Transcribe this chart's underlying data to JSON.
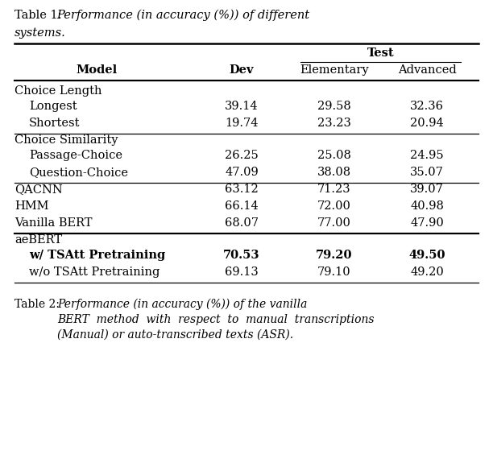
{
  "title_normal": "Table 1: ",
  "title_italic_line1": "Performance (in accuracy (%)) of different",
  "title_italic_line2": "systems.",
  "caption_normal": "Table 2: ",
  "caption_italic": "Performance (in accuracy (%)) of the vanilla\nBERT  method  with  respect  to  manual  transcriptions\n(Manual) or auto-transcribed texts (ASR).",
  "test_label": "Test",
  "col_model_label": "Model",
  "col_dev_label": "Dev",
  "col_elem_label": "Elementary",
  "col_adv_label": "Advanced",
  "rows": [
    {
      "label": "Choice Length",
      "indent": 0,
      "dev": "",
      "elem": "",
      "adv": "",
      "group_header": true,
      "bold": false
    },
    {
      "label": "Longest",
      "indent": 1,
      "dev": "39.14",
      "elem": "29.58",
      "adv": "32.36",
      "group_header": false,
      "bold": false
    },
    {
      "label": "Shortest",
      "indent": 1,
      "dev": "19.74",
      "elem": "23.23",
      "adv": "20.94",
      "group_header": false,
      "bold": false
    },
    {
      "label": "Choice Similarity",
      "indent": 0,
      "dev": "",
      "elem": "",
      "adv": "",
      "group_header": true,
      "bold": false
    },
    {
      "label": "Passage-Choice",
      "indent": 1,
      "dev": "26.25",
      "elem": "25.08",
      "adv": "24.95",
      "group_header": false,
      "bold": false
    },
    {
      "label": "Question-Choice",
      "indent": 1,
      "dev": "47.09",
      "elem": "38.08",
      "adv": "35.07",
      "group_header": false,
      "bold": false
    },
    {
      "label": "QACNN",
      "indent": 0,
      "dev": "63.12",
      "elem": "71.23",
      "adv": "39.07",
      "group_header": false,
      "bold": false
    },
    {
      "label": "HMM",
      "indent": 0,
      "dev": "66.14",
      "elem": "72.00",
      "adv": "40.98",
      "group_header": false,
      "bold": false
    },
    {
      "label": "Vanilla BERT",
      "indent": 0,
      "dev": "68.07",
      "elem": "77.00",
      "adv": "47.90",
      "group_header": false,
      "bold": false
    },
    {
      "label": "aeBERT",
      "indent": 0,
      "dev": "",
      "elem": "",
      "adv": "",
      "group_header": true,
      "bold": false
    },
    {
      "label": "w/ TSAtt Pretraining",
      "indent": 1,
      "dev": "70.53",
      "elem": "79.20",
      "adv": "49.50",
      "group_header": false,
      "bold": true
    },
    {
      "label": "w/o TSAtt Pretraining",
      "indent": 1,
      "dev": "69.13",
      "elem": "79.10",
      "adv": "49.20",
      "group_header": false,
      "bold": false
    }
  ],
  "separators_after": [
    2,
    5,
    8,
    11
  ],
  "thick_separators": [
    8
  ],
  "bg_color": "#ffffff",
  "font_size": 10.5,
  "header_font_size": 10.5,
  "caption_font_size": 10.0
}
